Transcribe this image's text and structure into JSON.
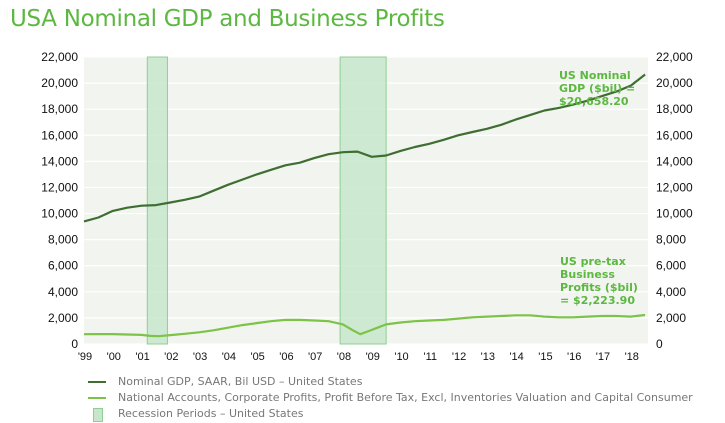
{
  "title": "USA Nominal GDP and Business Profits",
  "colors": {
    "gdp": "#3f6e32",
    "profits": "#7cc348",
    "recession": "#c8e6cc",
    "recession_border": "#8fcf92",
    "plot_bg": "#f1f4ef",
    "grid": "#ffffff",
    "annotation": "#5cb841",
    "axis_text": "#111111"
  },
  "chart_data": {
    "type": "line",
    "x_start": 1999.0,
    "x_end": 2018.6,
    "ylim": [
      0,
      22000
    ],
    "yticks": [
      "0",
      "2,000",
      "4,000",
      "6,000",
      "8,000",
      "10,000",
      "12,000",
      "14,000",
      "16,000",
      "18,000",
      "20,000",
      "22,000"
    ],
    "ytick_values": [
      0,
      2000,
      4000,
      6000,
      8000,
      10000,
      12000,
      14000,
      16000,
      18000,
      20000,
      22000
    ],
    "xticks": [
      "'99",
      "'00",
      "'01",
      "'02",
      "'03",
      "'04",
      "'05",
      "'06",
      "'07",
      "'08",
      "'09",
      "'10",
      "'11",
      "'12",
      "'13",
      "'14",
      "'15",
      "'16",
      "'17",
      "'18"
    ],
    "xtick_values": [
      1999,
      2000,
      2001,
      2002,
      2003,
      2004,
      2005,
      2006,
      2007,
      2008,
      2009,
      2010,
      2011,
      2012,
      2013,
      2014,
      2015,
      2016,
      2017,
      2018
    ],
    "recessions": [
      [
        2001.2,
        2001.9
      ],
      [
        2007.9,
        2009.5
      ]
    ],
    "series": [
      {
        "key": "gdp",
        "name": "Nominal GDP, SAAR, Bil USD - United States",
        "x": [
          1999.0,
          1999.5,
          2000.0,
          2000.5,
          2001.0,
          2001.5,
          2002.0,
          2002.5,
          2003.0,
          2003.5,
          2004.0,
          2004.5,
          2005.0,
          2005.5,
          2006.0,
          2006.5,
          2007.0,
          2007.5,
          2008.0,
          2008.5,
          2009.0,
          2009.5,
          2010.0,
          2010.5,
          2011.0,
          2011.5,
          2012.0,
          2012.5,
          2013.0,
          2013.5,
          2014.0,
          2014.5,
          2015.0,
          2015.5,
          2016.0,
          2016.5,
          2017.0,
          2017.5,
          2018.0,
          2018.5
        ],
        "values": [
          9400,
          9700,
          10200,
          10450,
          10600,
          10650,
          10850,
          11050,
          11300,
          11750,
          12200,
          12600,
          13000,
          13350,
          13700,
          13900,
          14250,
          14550,
          14700,
          14750,
          14350,
          14450,
          14800,
          15100,
          15350,
          15650,
          16000,
          16250,
          16500,
          16800,
          17200,
          17550,
          17900,
          18100,
          18350,
          18650,
          19000,
          19350,
          19800,
          20658.2
        ]
      },
      {
        "key": "profits",
        "name": "National Accounts, Corporate Profits, Profit Before Tax, Excl, Inventories Valuation and Capital Consumer",
        "x": [
          1999.0,
          1999.5,
          2000.0,
          2000.5,
          2001.0,
          2001.3,
          2001.6,
          2002.0,
          2002.5,
          2003.0,
          2003.5,
          2004.0,
          2004.5,
          2005.0,
          2005.5,
          2006.0,
          2006.5,
          2007.0,
          2007.5,
          2008.0,
          2008.3,
          2008.6,
          2008.9,
          2009.2,
          2009.5,
          2010.0,
          2010.5,
          2011.0,
          2011.5,
          2012.0,
          2012.5,
          2013.0,
          2013.5,
          2014.0,
          2014.5,
          2015.0,
          2015.5,
          2016.0,
          2016.5,
          2017.0,
          2017.5,
          2018.0,
          2018.5
        ],
        "values": [
          750,
          760,
          760,
          730,
          700,
          620,
          600,
          680,
          780,
          900,
          1050,
          1250,
          1450,
          1600,
          1750,
          1850,
          1850,
          1800,
          1750,
          1500,
          1100,
          750,
          1000,
          1250,
          1500,
          1650,
          1750,
          1800,
          1850,
          1950,
          2050,
          2100,
          2150,
          2200,
          2200,
          2100,
          2050,
          2050,
          2100,
          2150,
          2150,
          2100,
          2223.9
        ]
      }
    ],
    "annotations": [
      {
        "lines": [
          "US Nominal",
          "GDP ($bil) =",
          "$20,658.20"
        ]
      },
      {
        "lines": [
          "US pre-tax",
          "Business",
          "Profits ($bil)",
          "= $2,223.90"
        ]
      }
    ]
  },
  "legend": {
    "items": [
      {
        "label": "Nominal GDP, SAAR, Bil USD – United States"
      },
      {
        "label": "National Accounts, Corporate Profits, Profit Before Tax, Excl, Inventories Valuation and Capital Consumer"
      },
      {
        "label": "Recession Periods – United States"
      }
    ]
  }
}
